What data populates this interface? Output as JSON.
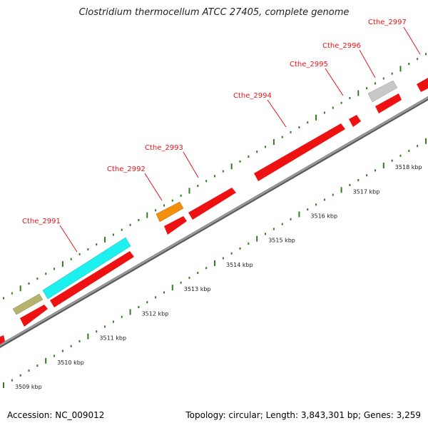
{
  "title": "Clostridium thermocellum ATCC 27405, complete genome",
  "accession": "Accession: NC_009012",
  "summary": "Topology: circular; Length: 3,843,301 bp; Genes: 3,259",
  "colors": {
    "backbone": "#8a8a8a",
    "tick": "#2f7d1e",
    "cds": "#ee1111",
    "label": "#e8141a",
    "feature_cyan": "#1ef0f0",
    "feature_khaki": "#b5b36e",
    "feature_orange": "#f2900e",
    "feature_gray": "#c8c8c8"
  },
  "ticks": [
    "3509 kbp",
    "3510 kbp",
    "3511 kbp",
    "3512 kbp",
    "3513 kbp",
    "3514 kbp",
    "3515 kbp",
    "3516 kbp",
    "3517 kbp",
    "3518 kbp"
  ],
  "genes": [
    "Cthe_2991",
    "Cthe_2992",
    "Cthe_2993",
    "Cthe_2994",
    "Cthe_2995",
    "Cthe_2996",
    "Cthe_2997"
  ]
}
